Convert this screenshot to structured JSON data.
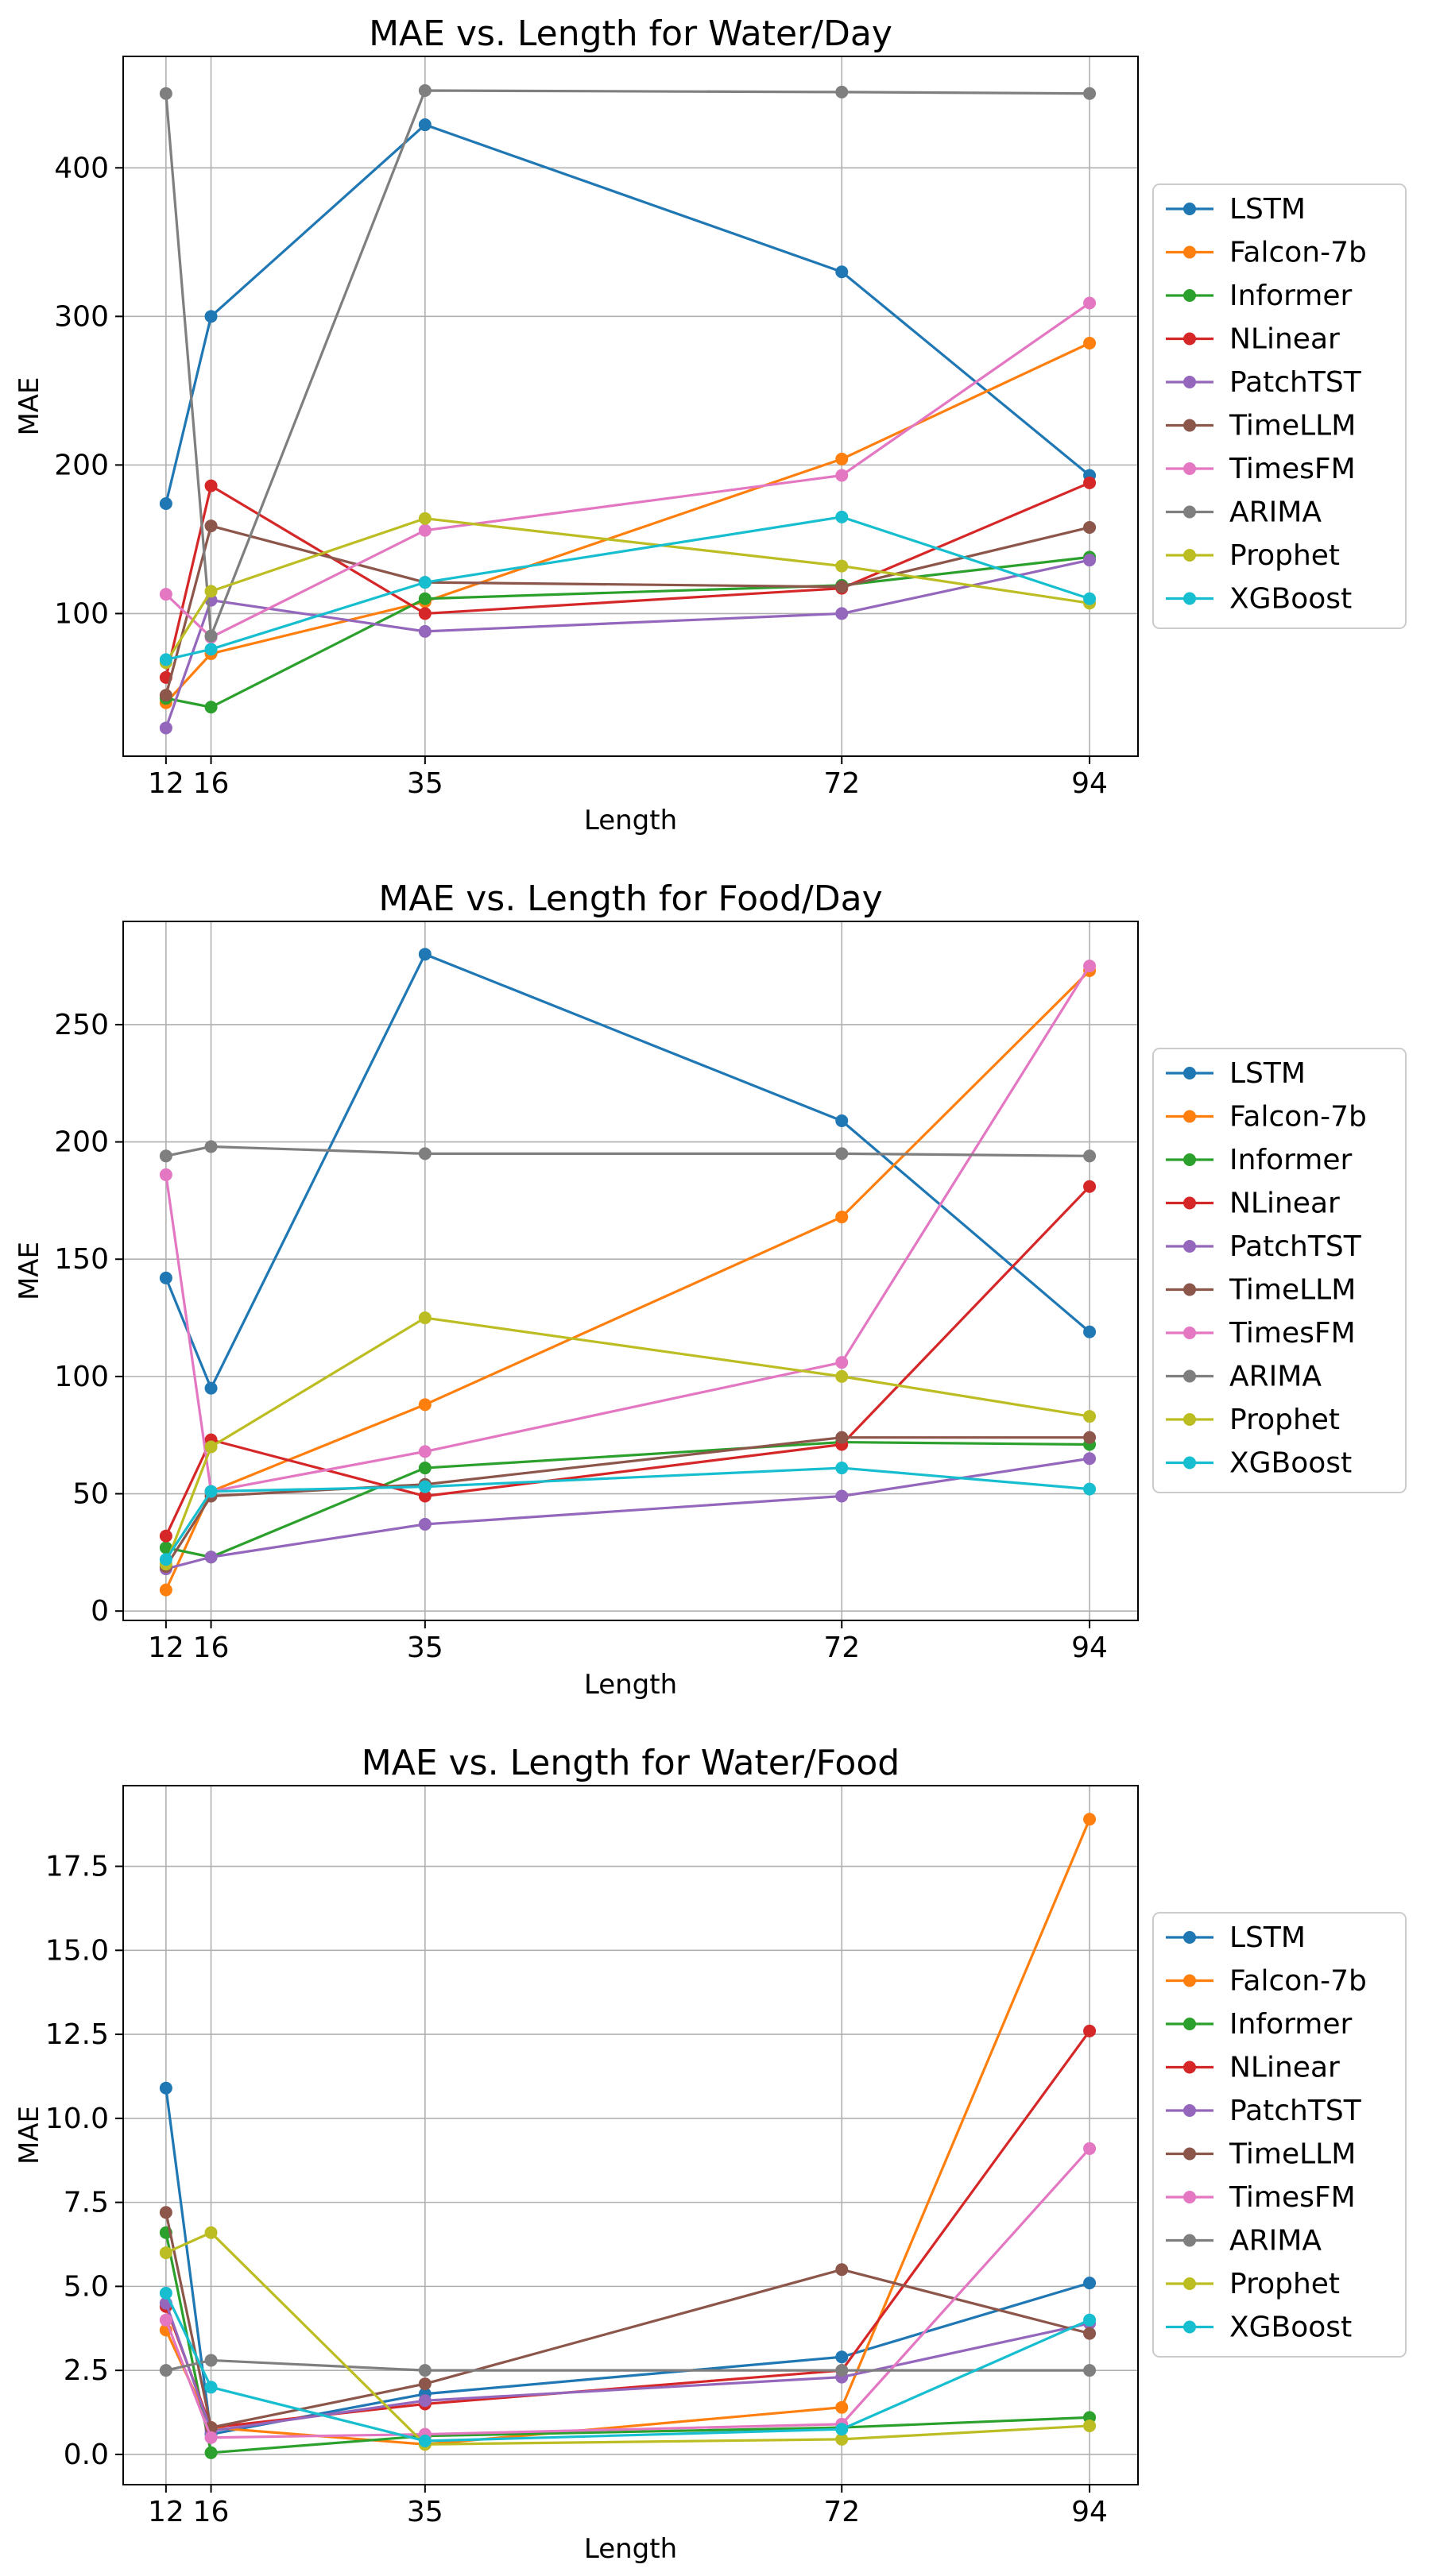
{
  "chart_data": [
    {
      "type": "line",
      "title": "MAE vs. Length for Water/Day",
      "xlabel": "Length",
      "ylabel": "MAE",
      "x": [
        12,
        16,
        35,
        72,
        94
      ],
      "xlim": [
        8.2,
        98.3
      ],
      "ylim": [
        4,
        475
      ],
      "yticks": [
        100,
        200,
        300,
        400
      ],
      "ytick_labels": [
        "100",
        "200",
        "300",
        "400"
      ],
      "xtick_labels": [
        "12",
        "16",
        "35",
        "72",
        "94"
      ],
      "grid": true,
      "legend_position": "right",
      "series": [
        {
          "name": "LSTM",
          "color": "#1f77b4",
          "values": [
            174,
            300,
            429,
            330,
            193
          ]
        },
        {
          "name": "Falcon-7b",
          "color": "#ff7f0e",
          "values": [
            40,
            73,
            108,
            204,
            282
          ]
        },
        {
          "name": "Informer",
          "color": "#2ca02c",
          "values": [
            43,
            37,
            110,
            119,
            138
          ]
        },
        {
          "name": "NLinear",
          "color": "#d62728",
          "values": [
            57,
            186,
            100,
            117,
            188
          ]
        },
        {
          "name": "PatchTST",
          "color": "#9467bd",
          "values": [
            23,
            109,
            88,
            100,
            136
          ]
        },
        {
          "name": "TimeLLM",
          "color": "#8c564b",
          "values": [
            45,
            159,
            121,
            118,
            158
          ]
        },
        {
          "name": "TimesFM",
          "color": "#e377c2",
          "values": [
            113,
            84,
            156,
            193,
            309
          ]
        },
        {
          "name": "ARIMA",
          "color": "#7f7f7f",
          "values": [
            450,
            85,
            452,
            451,
            450
          ]
        },
        {
          "name": "Prophet",
          "color": "#bcbd22",
          "values": [
            67,
            115,
            164,
            132,
            107
          ]
        },
        {
          "name": "XGBoost",
          "color": "#17becf",
          "values": [
            69,
            76,
            121,
            165,
            110
          ]
        }
      ]
    },
    {
      "type": "line",
      "title": "MAE vs. Length for Food/Day",
      "xlabel": "Length",
      "ylabel": "MAE",
      "x": [
        12,
        16,
        35,
        72,
        94
      ],
      "xlim": [
        8.2,
        98.3
      ],
      "ylim": [
        -4,
        294
      ],
      "yticks": [
        0,
        50,
        100,
        150,
        200,
        250
      ],
      "ytick_labels": [
        "0",
        "50",
        "100",
        "150",
        "200",
        "250"
      ],
      "xtick_labels": [
        "12",
        "16",
        "35",
        "72",
        "94"
      ],
      "grid": true,
      "legend_position": "right",
      "series": [
        {
          "name": "LSTM",
          "color": "#1f77b4",
          "values": [
            142,
            95,
            280,
            209,
            119
          ]
        },
        {
          "name": "Falcon-7b",
          "color": "#ff7f0e",
          "values": [
            9,
            51,
            88,
            168,
            273
          ]
        },
        {
          "name": "Informer",
          "color": "#2ca02c",
          "values": [
            27,
            23,
            61,
            72,
            71
          ]
        },
        {
          "name": "NLinear",
          "color": "#d62728",
          "values": [
            32,
            73,
            49,
            71,
            181
          ]
        },
        {
          "name": "PatchTST",
          "color": "#9467bd",
          "values": [
            18,
            23,
            37,
            49,
            65
          ]
        },
        {
          "name": "TimeLLM",
          "color": "#8c564b",
          "values": [
            19,
            49,
            54,
            74,
            74
          ]
        },
        {
          "name": "TimesFM",
          "color": "#e377c2",
          "values": [
            186,
            51,
            68,
            106,
            275
          ]
        },
        {
          "name": "ARIMA",
          "color": "#7f7f7f",
          "values": [
            194,
            198,
            195,
            195,
            194
          ]
        },
        {
          "name": "Prophet",
          "color": "#bcbd22",
          "values": [
            20,
            70,
            125,
            100,
            83
          ]
        },
        {
          "name": "XGBoost",
          "color": "#17becf",
          "values": [
            22,
            51,
            53,
            61,
            52
          ]
        }
      ]
    },
    {
      "type": "line",
      "title": "MAE vs. Length for Water/Food",
      "xlabel": "Length",
      "ylabel": "MAE",
      "x": [
        12,
        16,
        35,
        72,
        94
      ],
      "xlim": [
        8.2,
        98.3
      ],
      "ylim": [
        -0.9,
        19.9
      ],
      "yticks": [
        0,
        2.5,
        5,
        7.5,
        10,
        12.5,
        15,
        17.5
      ],
      "ytick_labels": [
        "0.0",
        "2.5",
        "5.0",
        "7.5",
        "10.0",
        "12.5",
        "15.0",
        "17.5"
      ],
      "xtick_labels": [
        "12",
        "16",
        "35",
        "72",
        "94"
      ],
      "grid": true,
      "legend_position": "right",
      "series": [
        {
          "name": "LSTM",
          "color": "#1f77b4",
          "values": [
            10.9,
            0.6,
            1.8,
            2.9,
            5.1
          ]
        },
        {
          "name": "Falcon-7b",
          "color": "#ff7f0e",
          "values": [
            3.7,
            0.8,
            0.3,
            1.4,
            18.9
          ]
        },
        {
          "name": "Informer",
          "color": "#2ca02c",
          "values": [
            6.6,
            0.05,
            0.55,
            0.8,
            1.1
          ]
        },
        {
          "name": "NLinear",
          "color": "#d62728",
          "values": [
            4.4,
            0.8,
            1.5,
            2.5,
            12.6
          ]
        },
        {
          "name": "PatchTST",
          "color": "#9467bd",
          "values": [
            4.5,
            0.7,
            1.6,
            2.3,
            3.9
          ]
        },
        {
          "name": "TimeLLM",
          "color": "#8c564b",
          "values": [
            7.2,
            0.8,
            2.1,
            5.5,
            3.6
          ]
        },
        {
          "name": "TimesFM",
          "color": "#e377c2",
          "values": [
            4.0,
            0.5,
            0.6,
            0.9,
            9.1
          ]
        },
        {
          "name": "ARIMA",
          "color": "#7f7f7f",
          "values": [
            2.5,
            2.8,
            2.5,
            2.5,
            2.5
          ]
        },
        {
          "name": "Prophet",
          "color": "#bcbd22",
          "values": [
            6.0,
            6.6,
            0.3,
            0.45,
            0.85
          ]
        },
        {
          "name": "XGBoost",
          "color": "#17becf",
          "values": [
            4.8,
            2.0,
            0.4,
            0.75,
            4.0
          ]
        }
      ]
    }
  ]
}
